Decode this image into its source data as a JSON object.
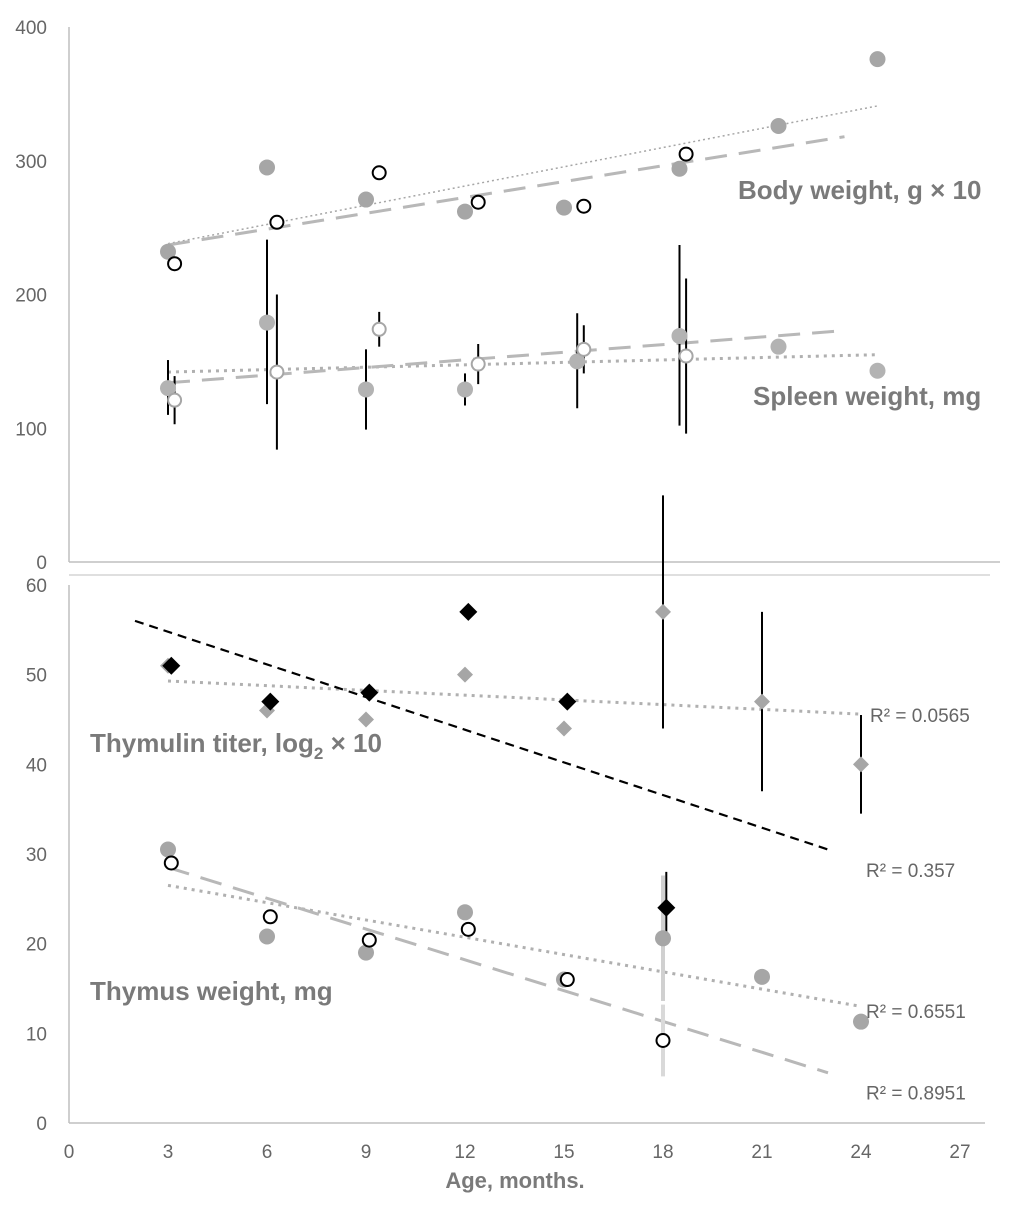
{
  "colors": {
    "gray": "#a6a6a6",
    "dark": "#000000",
    "axis": "#bfbfbf",
    "text": "#666666",
    "label": "#7a7a7a"
  },
  "x_axis": {
    "title": "Age, months.",
    "ticks": [
      "0",
      "3",
      "6",
      "9",
      "12",
      "15",
      "18",
      "21",
      "24",
      "27"
    ]
  },
  "chart_data": [
    {
      "type": "scatter",
      "panel": "top",
      "ylim": [
        0,
        400
      ],
      "y_ticks": [
        "0",
        "100",
        "200",
        "300",
        "400"
      ],
      "labels": {
        "body": "Body weight, g × 10",
        "spleen": "Spleen weight, mg"
      },
      "series": [
        {
          "id": "body_filled",
          "marker": "circle-filled",
          "points": [
            [
              3,
              232
            ],
            [
              6,
              295
            ],
            [
              9,
              271
            ],
            [
              12,
              262
            ],
            [
              15,
              265
            ],
            [
              18.5,
              294
            ],
            [
              21.5,
              326
            ],
            [
              24.5,
              376
            ]
          ],
          "trend": {
            "style": "dotted-thin",
            "x": [
              3,
              24.5
            ],
            "y": [
              238,
              341
            ]
          }
        },
        {
          "id": "body_open",
          "marker": "circle-open",
          "points": [
            [
              3.2,
              223
            ],
            [
              6.3,
              254
            ],
            [
              9.4,
              291
            ],
            [
              12.4,
              269
            ],
            [
              15.6,
              266
            ],
            [
              18.7,
              305
            ]
          ],
          "trend": {
            "style": "dashed",
            "x": [
              3,
              23.5
            ],
            "y": [
              237,
              318
            ]
          }
        },
        {
          "id": "spleen_filled",
          "marker": "circle-filled-light",
          "points": [
            [
              3,
              130
            ],
            [
              6,
              179
            ],
            [
              9,
              129
            ],
            [
              12,
              129
            ],
            [
              15.4,
              150
            ],
            [
              18.5,
              169
            ],
            [
              21.5,
              161
            ],
            [
              24.5,
              143
            ]
          ],
          "errors": [
            [
              21,
              20
            ],
            [
              62,
              61
            ],
            [
              30,
              30
            ],
            [
              12,
              12
            ],
            [
              36,
              35
            ],
            [
              68,
              67
            ],
            [
              0,
              0
            ],
            [
              0,
              0
            ]
          ],
          "trend": {
            "style": "dotted",
            "x": [
              3,
              24.5
            ],
            "y": [
              142,
              155
            ]
          }
        },
        {
          "id": "spleen_open",
          "marker": "circle-open-light",
          "points": [
            [
              3.2,
              121
            ],
            [
              6.3,
              142
            ],
            [
              9.4,
              174
            ],
            [
              12.4,
              148
            ],
            [
              15.6,
              159
            ],
            [
              18.7,
              154
            ]
          ],
          "errors": [
            [
              18,
              18
            ],
            [
              58,
              58
            ],
            [
              13,
              13
            ],
            [
              15,
              15
            ],
            [
              18,
              18
            ],
            [
              58,
              58
            ]
          ],
          "trend": {
            "style": "dashed",
            "x": [
              3,
              23.5
            ],
            "y": [
              134,
              173
            ]
          }
        }
      ]
    },
    {
      "type": "scatter",
      "panel": "bottom",
      "ylim": [
        0,
        60
      ],
      "y_ticks": [
        "0",
        "10",
        "20",
        "30",
        "40",
        "50",
        "60"
      ],
      "labels": {
        "thymulin_prefix": "Thymulin titer, log",
        "thymulin_sub": "2",
        "thymulin_suffix": " × 10",
        "thymus": "Thymus weight, mg"
      },
      "r2": [
        {
          "text": "R² = 0.0565",
          "y": 45.5
        },
        {
          "text": "R² = 0.357",
          "y": 28.2
        },
        {
          "text": "R² = 0.6551",
          "y": 12.5
        },
        {
          "text": "R² = 0.8951",
          "y": 3.4
        }
      ],
      "series": [
        {
          "id": "thymulin_gray",
          "marker": "diamond-gray",
          "points": [
            [
              3,
              51
            ],
            [
              6,
              46
            ],
            [
              9,
              45
            ],
            [
              12,
              50
            ],
            [
              15,
              44
            ],
            [
              18,
              57
            ],
            [
              21,
              47
            ],
            [
              24,
              40
            ]
          ],
          "errors": [
            [
              0,
              0
            ],
            [
              0,
              0
            ],
            [
              0,
              0
            ],
            [
              0,
              0
            ],
            [
              0,
              0
            ],
            [
              13,
              13
            ],
            [
              10,
              10
            ],
            [
              5.5,
              5.5
            ]
          ],
          "trend": {
            "style": "dotted",
            "x": [
              3,
              24
            ],
            "y": [
              49.3,
              45.6
            ]
          }
        },
        {
          "id": "thymulin_black",
          "marker": "diamond-black",
          "points": [
            [
              3.1,
              51
            ],
            [
              6.1,
              47
            ],
            [
              9.1,
              48
            ],
            [
              12.1,
              57
            ],
            [
              15.1,
              47
            ],
            [
              18.1,
              24
            ]
          ],
          "errors": [
            [
              0,
              0
            ],
            [
              0,
              0
            ],
            [
              0,
              0
            ],
            [
              0,
              0
            ],
            [
              0,
              0
            ],
            [
              4,
              4
            ]
          ],
          "trend": {
            "style": "dashed-black",
            "x": [
              2,
              23
            ],
            "y": [
              56,
              30.5
            ]
          }
        },
        {
          "id": "thymus_filled",
          "marker": "circle-filled",
          "points": [
            [
              3,
              30.5
            ],
            [
              6,
              20.8
            ],
            [
              9,
              19
            ],
            [
              12,
              23.5
            ],
            [
              15,
              16
            ],
            [
              18,
              20.6
            ],
            [
              21,
              16.3
            ],
            [
              24,
              11.3
            ]
          ],
          "errors": [
            [
              0,
              0
            ],
            [
              0,
              0
            ],
            [
              0,
              0
            ],
            [
              0,
              0
            ],
            [
              0,
              0
            ],
            [
              7,
              7
            ],
            [
              0,
              0
            ],
            [
              0,
              0
            ]
          ],
          "trend": {
            "style": "dotted",
            "x": [
              3,
              24
            ],
            "y": [
              26.5,
              13
            ]
          }
        },
        {
          "id": "thymus_open",
          "marker": "circle-open",
          "points": [
            [
              3.1,
              29
            ],
            [
              6.1,
              23
            ],
            [
              9.1,
              20.4
            ],
            [
              12.1,
              21.6
            ],
            [
              15.1,
              16
            ],
            [
              18,
              9.2
            ]
          ],
          "errors": [
            [
              0,
              0
            ],
            [
              0,
              0
            ],
            [
              0,
              0
            ],
            [
              0,
              0
            ],
            [
              0,
              0
            ],
            [
              4,
              4
            ]
          ],
          "trend": {
            "style": "dashed",
            "x": [
              3,
              23
            ],
            "y": [
              28.5,
              5.6
            ]
          }
        }
      ]
    }
  ]
}
